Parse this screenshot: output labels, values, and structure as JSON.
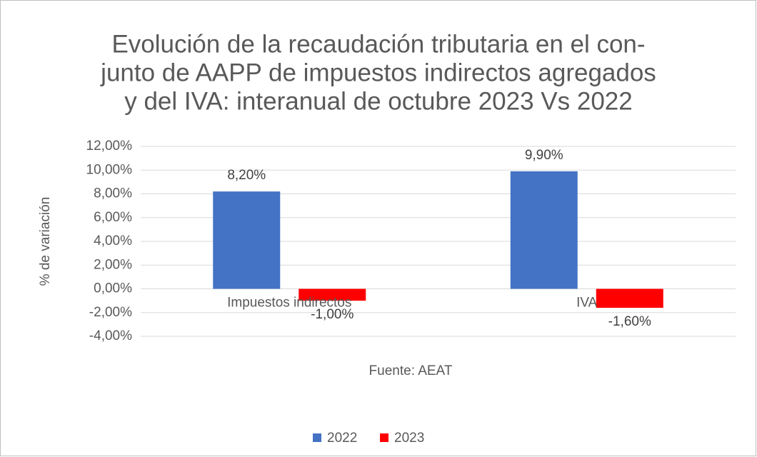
{
  "chart_data": {
    "type": "bar",
    "title": [
      "Evolución de la recaudación tributaria en el con-",
      "junto de AAPP de impuestos indirectos agregados",
      "y del IVA: interanual de octubre 2023 Vs 2022"
    ],
    "y_label": "% de variación",
    "x_label": "Fuente: AEAT",
    "categories": [
      "Impuestos indirectos",
      "IVA"
    ],
    "series": [
      {
        "name": "2022",
        "color": "#4472c4",
        "values": [
          8.2,
          9.9
        ],
        "value_labels": [
          "8,20%",
          "9,90%"
        ]
      },
      {
        "name": "2023",
        "color": "#ff0000",
        "values": [
          -1.0,
          -1.6
        ],
        "value_labels": [
          "-1,00%",
          "-1,60%"
        ]
      }
    ],
    "ylim": [
      -4,
      12
    ],
    "yticks": [
      {
        "value": -4,
        "label": "-4,00%"
      },
      {
        "value": -2,
        "label": "-2,00%"
      },
      {
        "value": 0,
        "label": "0,00%"
      },
      {
        "value": 2,
        "label": "2,00%"
      },
      {
        "value": 4,
        "label": "4,00%"
      },
      {
        "value": 6,
        "label": "6,00%"
      },
      {
        "value": 8,
        "label": "8,00%"
      },
      {
        "value": 10,
        "label": "10,00%"
      },
      {
        "value": 12,
        "label": "12,00%"
      }
    ],
    "grid": true,
    "legend": "bottom"
  }
}
